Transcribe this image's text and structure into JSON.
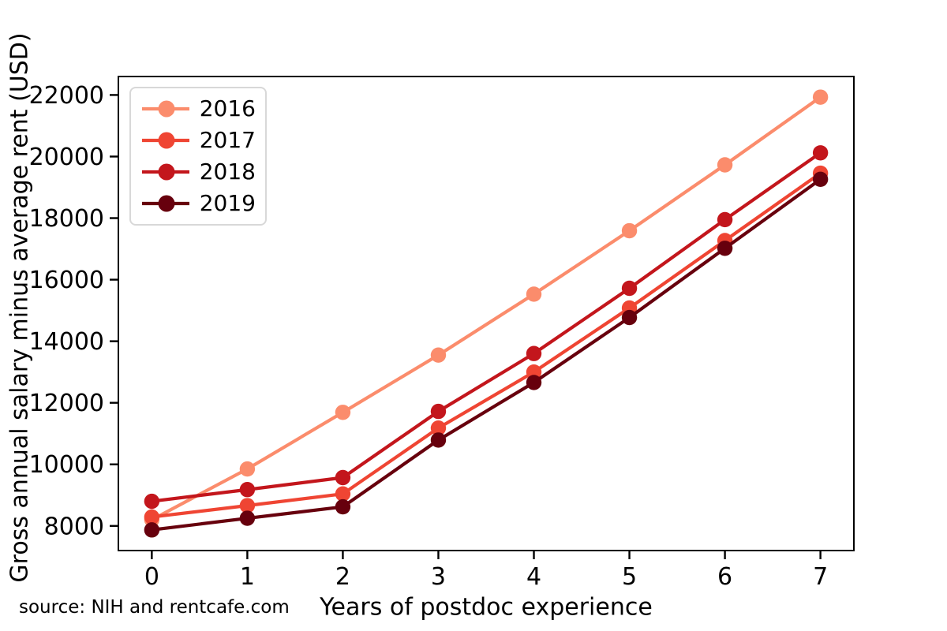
{
  "chart_data": {
    "type": "line",
    "title": "",
    "xlabel": "Years of postdoc experience",
    "ylabel": "Gross annual salary minus average rent (USD)",
    "source_note": "source: NIH and rentcafe.com",
    "x": [
      0,
      1,
      2,
      3,
      4,
      5,
      6,
      7
    ],
    "x_ticks": [
      0,
      1,
      2,
      3,
      4,
      5,
      6,
      7
    ],
    "y_ticks": [
      8000,
      10000,
      12000,
      14000,
      16000,
      18000,
      20000,
      22000
    ],
    "xlim": [
      -0.35,
      7.35
    ],
    "ylim": [
      7200,
      22600
    ],
    "grid": false,
    "legend_position": "upper left",
    "series": [
      {
        "name": "2016",
        "color": "#FB8C6C",
        "values": [
          8200,
          9850,
          11690,
          13550,
          15530,
          17590,
          19730,
          21930
        ]
      },
      {
        "name": "2017",
        "color": "#EF4533",
        "values": [
          8290,
          8660,
          9040,
          11180,
          13000,
          15080,
          17270,
          19460
        ]
      },
      {
        "name": "2018",
        "color": "#C3161C",
        "values": [
          8800,
          9180,
          9570,
          11720,
          13600,
          15720,
          17950,
          20120
        ]
      },
      {
        "name": "2019",
        "color": "#67000D",
        "values": [
          7870,
          8250,
          8620,
          10790,
          12660,
          14770,
          17020,
          19260
        ]
      }
    ],
    "axis_color": "#000000",
    "background_color": "#ffffff"
  }
}
